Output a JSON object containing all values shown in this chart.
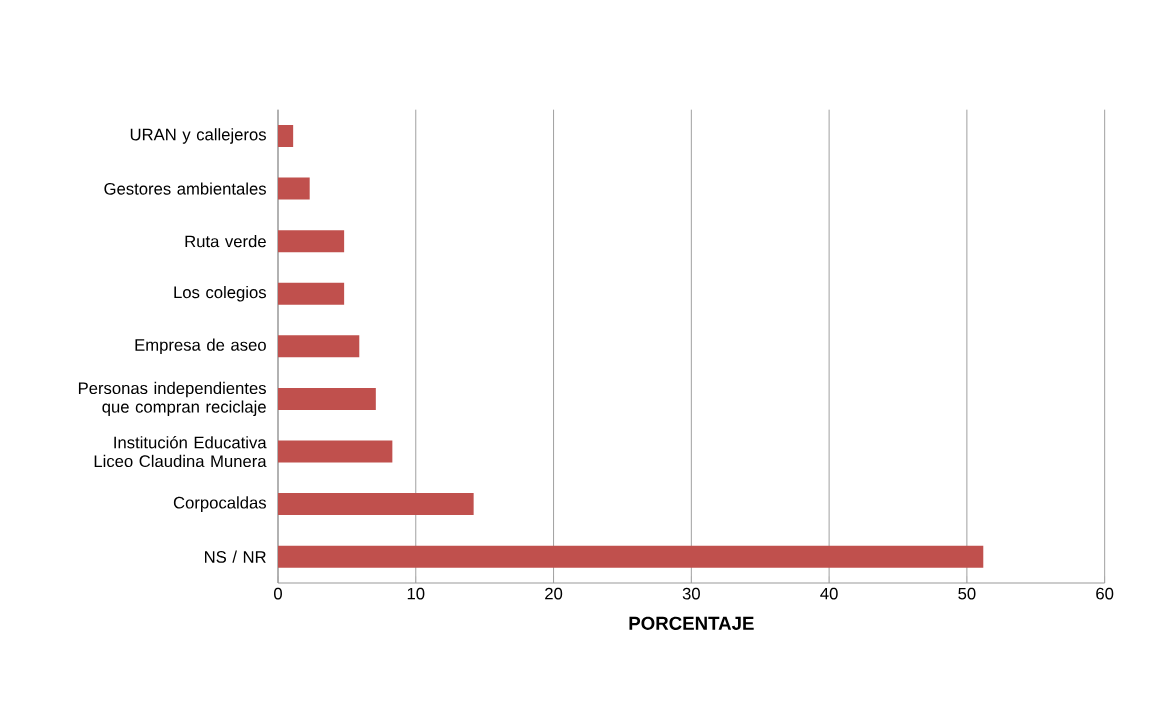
{
  "chart_data": {
    "type": "bar",
    "orientation": "horizontal",
    "xlabel": "PORCENTAJE",
    "categories": [
      "URAN y callejeros",
      "Gestores ambientales",
      "Ruta verde",
      "Los colegios",
      "Empresa de aseo",
      "Personas independientes que compran reciclaje",
      "Institución Educativa Liceo Claudina Munera",
      "Corpocaldas",
      "NS / NR"
    ],
    "values": [
      1.1,
      2.3,
      4.8,
      4.8,
      5.9,
      7.1,
      8.3,
      14.2,
      51.2
    ],
    "color": "#c0504d",
    "xlim": [
      0,
      60
    ],
    "xticks": [
      0,
      10,
      20,
      30,
      40,
      50,
      60
    ],
    "grid": "x"
  }
}
